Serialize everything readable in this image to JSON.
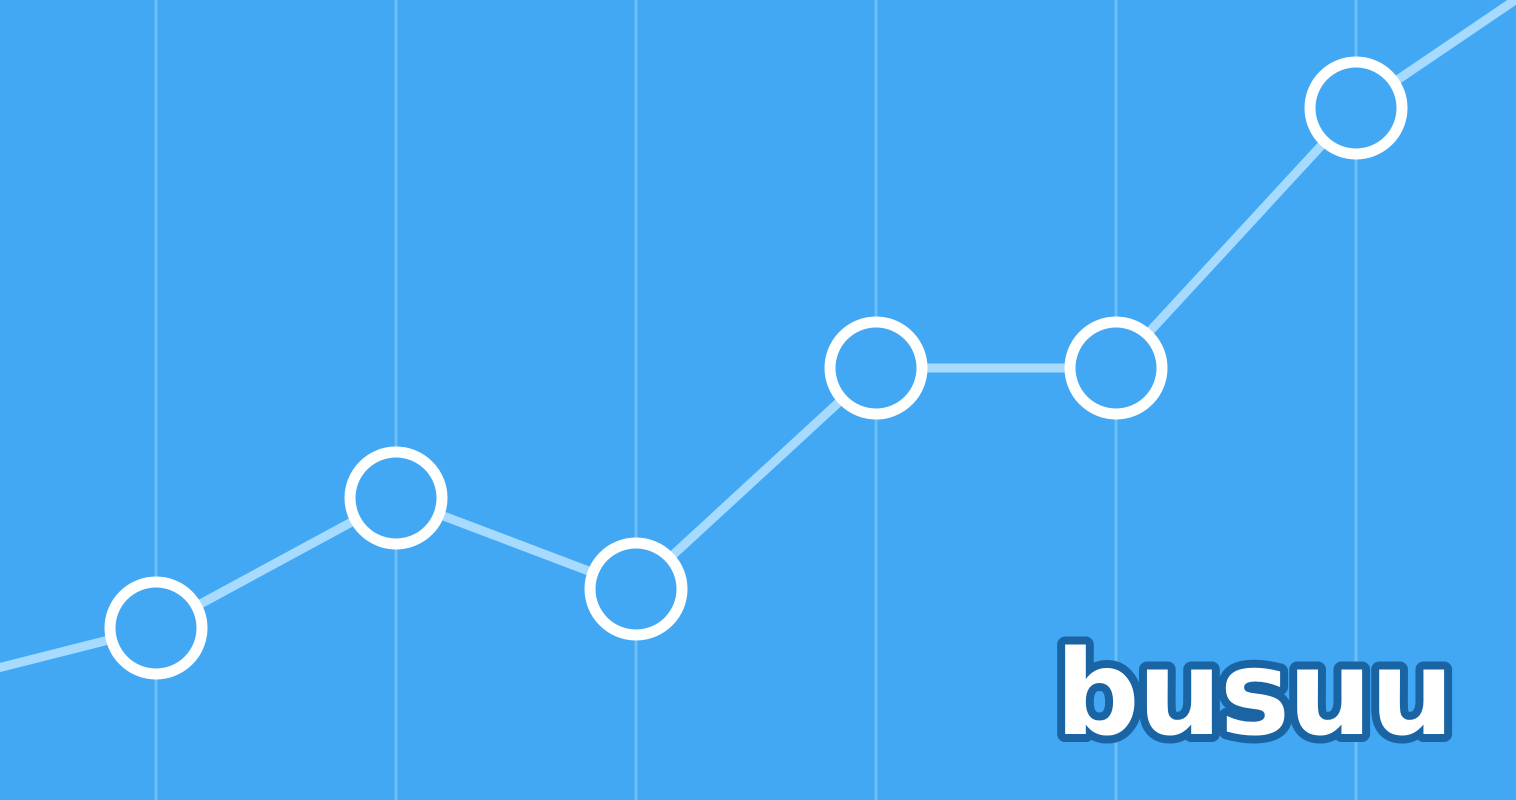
{
  "background_color": "#42a8f3",
  "gridline_color": "#7cc6f9",
  "line_color": "#a6dbff",
  "marker_stroke_color": "#ffffff",
  "marker_fill_color": "#42a8f3",
  "brand": {
    "name": "busuu",
    "text_color": "#ffffff",
    "outline_color": "#1b64a3"
  },
  "chart_data": {
    "type": "line",
    "title": "",
    "xlabel": "",
    "ylabel": "",
    "grid": "vertical",
    "legend": "none",
    "x": [
      0,
      1,
      2,
      3,
      4,
      5
    ],
    "series": [
      {
        "values": [
          1.0,
          2.0,
          1.3,
          3.0,
          3.0,
          5.0
        ]
      }
    ],
    "trend_extends_past_edges": true
  }
}
